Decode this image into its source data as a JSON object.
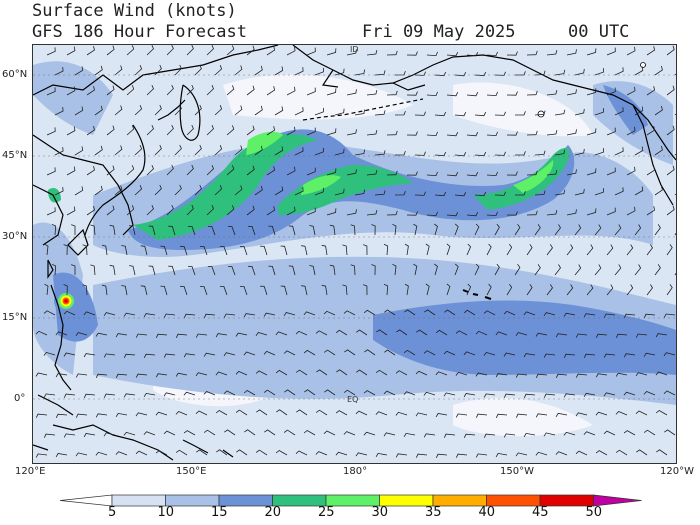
{
  "header": {
    "title_line1": "Surface Wind (knots)",
    "title_line2": "GFS 186 Hour Forecast",
    "date": "Fri 09 May 2025",
    "time": "00 UTC"
  },
  "map": {
    "latitude_labels": [
      "60°N",
      "45°N",
      "30°N",
      "15°N",
      "0°"
    ],
    "longitude_labels": [
      "120°E",
      "150°E",
      "180°",
      "150°W",
      "120°W"
    ],
    "inner_labels": [
      "ID",
      "EQ"
    ]
  },
  "colorbar": {
    "levels": [
      5,
      10,
      15,
      20,
      25,
      30,
      35,
      40,
      45,
      50
    ],
    "labels": [
      "5",
      "10",
      "15",
      "20",
      "25",
      "30",
      "35",
      "40",
      "45",
      "50"
    ],
    "colors": [
      "#ffffff",
      "#d6e2f3",
      "#a9c1e6",
      "#6d91d6",
      "#2ec07c",
      "#5ef067",
      "#ffff00",
      "#ffae00",
      "#ff5200",
      "#e00000",
      "#c000a0"
    ]
  },
  "field_colors": {
    "lt5": "#f4f6fb",
    "5to10": "#d6e2f3",
    "10to15": "#a9c1e6",
    "15to20": "#6d91d6",
    "20to25": "#2ec07c",
    "25to30": "#5ef067",
    "land_line": "#000000",
    "barb": "#222222"
  }
}
